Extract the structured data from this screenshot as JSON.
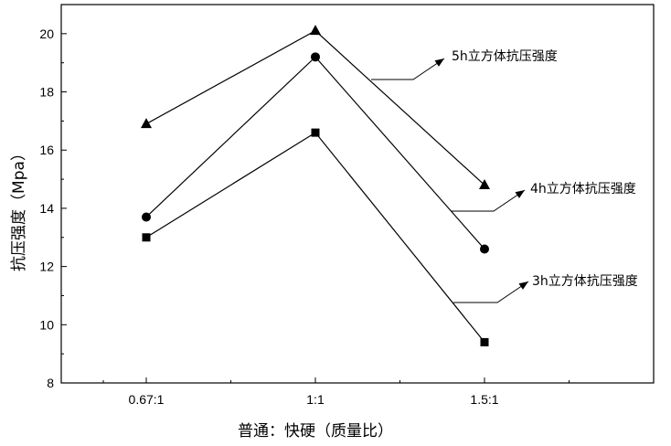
{
  "chart_data": {
    "type": "line",
    "categories": [
      "0.67:1",
      "1:1",
      "1.5:1"
    ],
    "series": [
      {
        "name": "5h立方体抗压强度",
        "marker": "triangle",
        "values": [
          16.9,
          20.1,
          14.8
        ]
      },
      {
        "name": "4h立方体抗压强度",
        "marker": "circle",
        "values": [
          13.7,
          19.2,
          12.6
        ]
      },
      {
        "name": "3h立方体抗压强度",
        "marker": "square",
        "values": [
          13.0,
          16.6,
          9.4
        ]
      }
    ],
    "xlabel": "普通：快硬（质量比）",
    "ylabel": "抗压强度（Mpa）",
    "ylim": [
      8,
      21
    ],
    "yticks": [
      8,
      10,
      12,
      14,
      16,
      18,
      20
    ],
    "grid": false,
    "colors": {
      "line": "#000000",
      "background": "#ffffff"
    }
  }
}
